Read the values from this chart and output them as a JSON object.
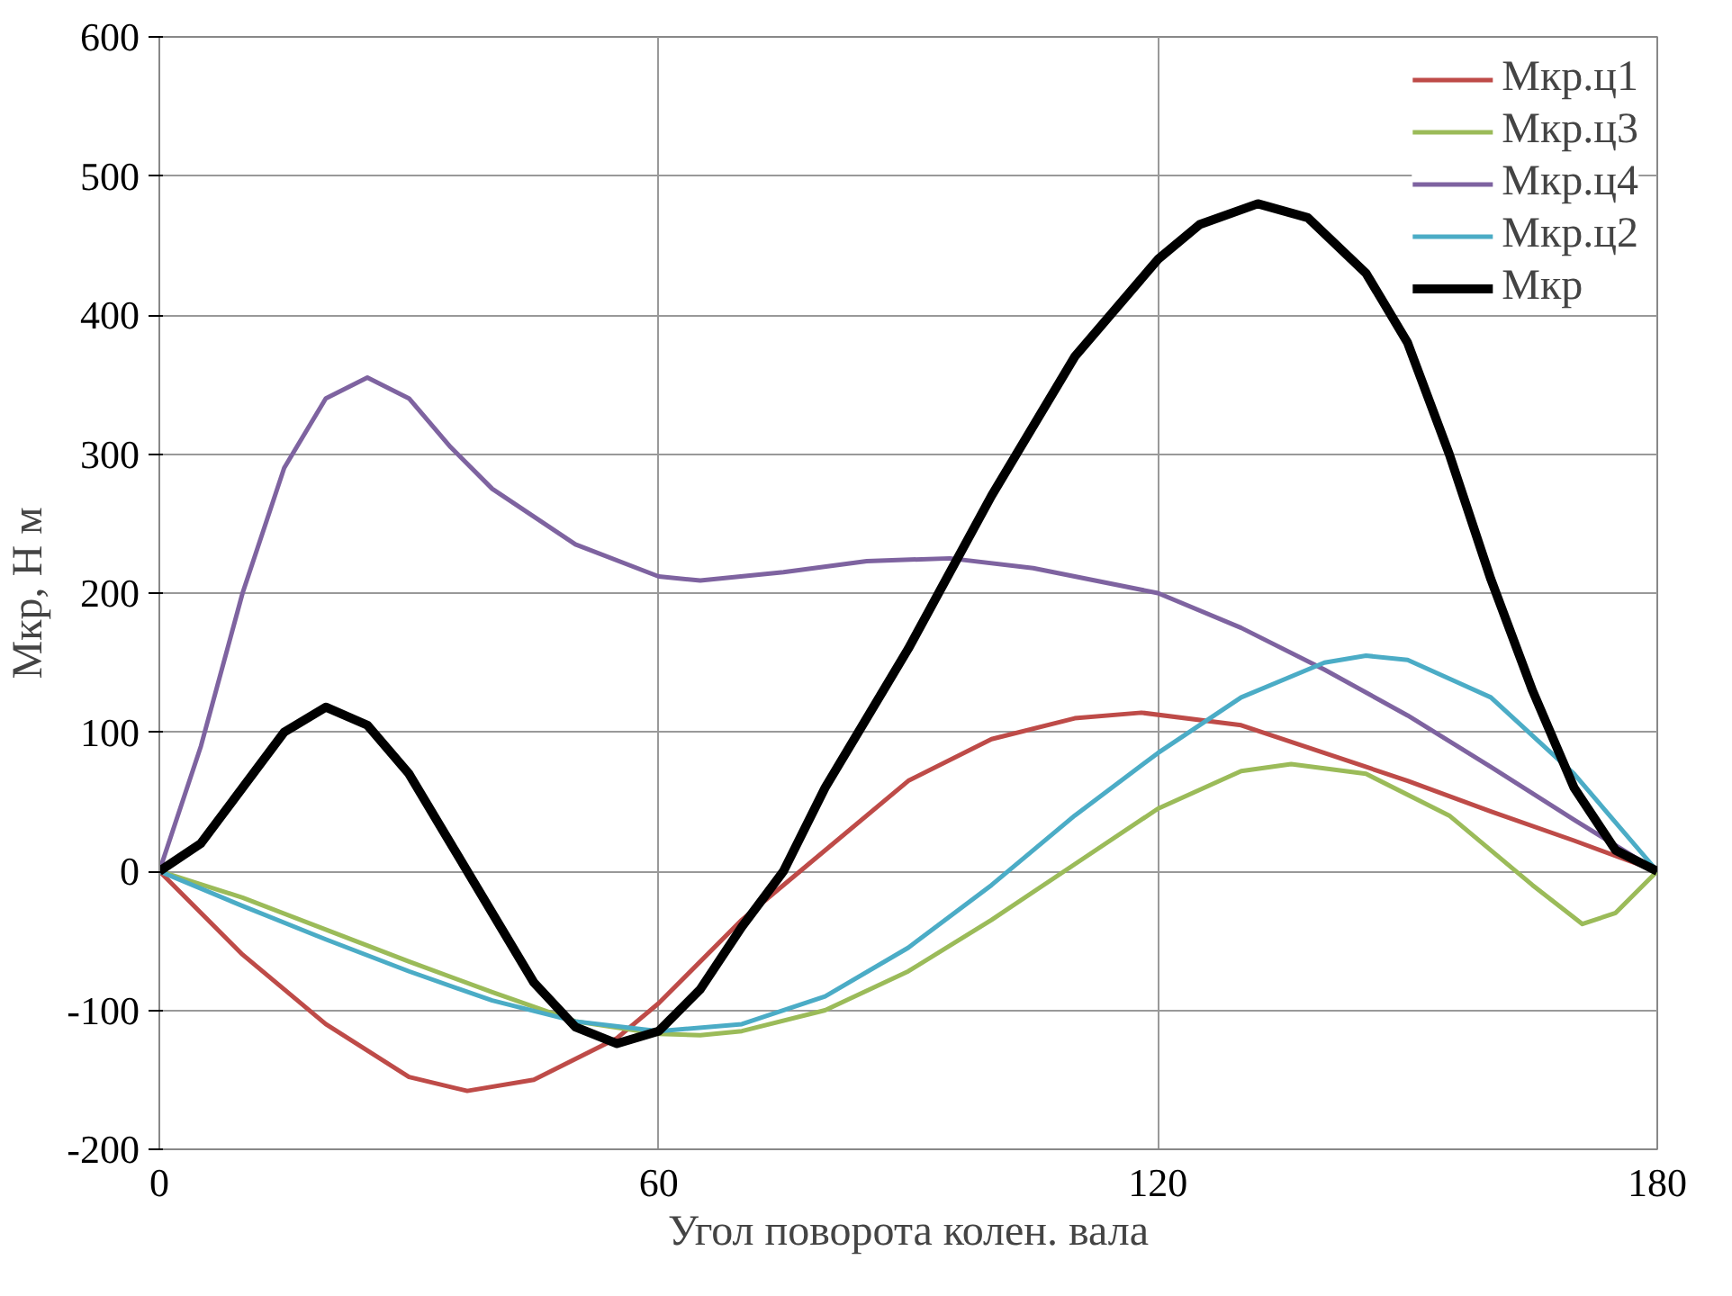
{
  "chart_data": {
    "type": "line",
    "xlabel": "Угол поворота колен. вала",
    "ylabel": "Мкр, Н м",
    "xlim": [
      0,
      180
    ],
    "xticks": [
      0,
      60,
      120,
      180
    ],
    "ylim": [
      -200,
      600
    ],
    "yticks": [
      -200,
      -100,
      0,
      100,
      200,
      300,
      400,
      500,
      600
    ],
    "grid": true,
    "legend": "top right",
    "line_style": "solid",
    "marker": "none",
    "series": [
      {
        "name": "Мкр.ц1",
        "color": "#be4b48",
        "x": [
          0,
          10,
          20,
          30,
          37,
          45,
          55,
          60,
          70,
          77,
          90,
          100,
          110,
          118,
          130,
          140,
          150,
          160,
          170,
          180
        ],
        "values": [
          0,
          -60,
          -110,
          -148,
          -158,
          -150,
          -120,
          -95,
          -35,
          0,
          65,
          95,
          110,
          114,
          105,
          85,
          65,
          43,
          22,
          0
        ]
      },
      {
        "name": "Мкр.ц3",
        "color": "#9bbb59",
        "x": [
          0,
          10,
          20,
          30,
          40,
          50,
          60,
          65,
          70,
          80,
          90,
          100,
          110,
          120,
          130,
          136,
          145,
          155,
          165,
          171,
          175,
          180
        ],
        "values": [
          0,
          -19,
          -42,
          -65,
          -87,
          -108,
          -117,
          -118,
          -115,
          -100,
          -72,
          -35,
          5,
          45,
          72,
          77,
          70,
          40,
          -10,
          -38,
          -30,
          0
        ]
      },
      {
        "name": "Мкр.ц4",
        "color": "#7e63a0",
        "x": [
          0,
          5,
          10,
          15,
          20,
          25,
          30,
          35,
          40,
          50,
          60,
          65,
          75,
          85,
          95,
          105,
          120,
          130,
          140,
          150,
          160,
          170,
          180
        ],
        "values": [
          0,
          90,
          200,
          290,
          340,
          355,
          340,
          305,
          275,
          235,
          212,
          209,
          215,
          223,
          225,
          218,
          200,
          175,
          145,
          112,
          75,
          37,
          0
        ]
      },
      {
        "name": "Мкр.ц2",
        "color": "#4bacc6",
        "x": [
          0,
          10,
          20,
          30,
          40,
          50,
          60,
          70,
          80,
          90,
          100,
          110,
          120,
          130,
          140,
          145,
          150,
          160,
          170,
          180
        ],
        "values": [
          0,
          -25,
          -49,
          -72,
          -93,
          -108,
          -115,
          -110,
          -90,
          -55,
          -10,
          40,
          85,
          125,
          150,
          155,
          152,
          125,
          70,
          0
        ]
      },
      {
        "name": "Мкр",
        "color": "#000000",
        "x": [
          0,
          5,
          10,
          15,
          20,
          25,
          30,
          35,
          40,
          45,
          50,
          55,
          60,
          65,
          70,
          75,
          80,
          90,
          100,
          110,
          120,
          125,
          132,
          138,
          145,
          150,
          155,
          160,
          165,
          170,
          175,
          180
        ],
        "values": [
          0,
          20,
          60,
          100,
          118,
          105,
          70,
          20,
          -30,
          -80,
          -112,
          -124,
          -115,
          -85,
          -40,
          0,
          60,
          160,
          270,
          370,
          440,
          465,
          480,
          470,
          430,
          380,
          300,
          210,
          130,
          60,
          15,
          0
        ]
      }
    ]
  }
}
